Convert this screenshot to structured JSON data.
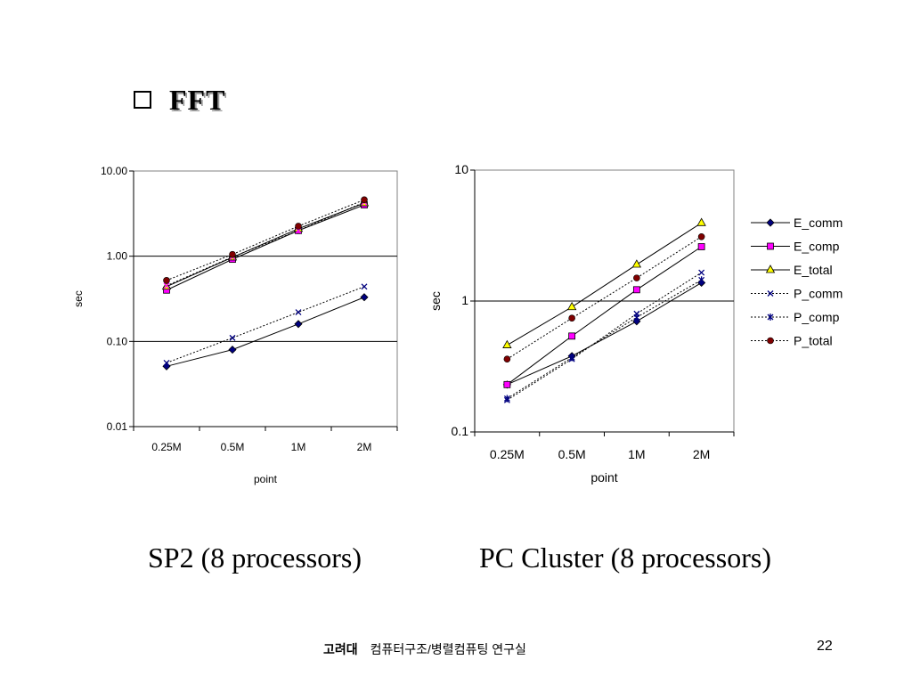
{
  "slide": {
    "title": "FFT",
    "caption_left": "SP2 (8 processors)",
    "caption_right": "PC Cluster (8 processors)",
    "footer_university": "고려대",
    "footer_lab": "컴퓨터구조/병렬컴퓨팅 연구실",
    "page_number": "22"
  },
  "colors": {
    "navy": "#000080",
    "magenta": "#ff00ff",
    "yellow": "#ffff00",
    "dark_red": "#800000",
    "line": "#000000"
  },
  "chart_data": [
    {
      "type": "line",
      "y_scale": "log",
      "xlabel": "point",
      "ylabel": "sec",
      "categories": [
        "0.25M",
        "0.5M",
        "1M",
        "2M"
      ],
      "yticks": [
        "10.00",
        "1.00",
        "0.10",
        "0.01"
      ],
      "ylim": [
        0.01,
        10
      ],
      "grid": "horizontal at 1.00 and 0.10",
      "legend": "none",
      "series": [
        {
          "key": "E_comm",
          "values": [
            0.051,
            0.08,
            0.16,
            0.33
          ],
          "marker": "diamond",
          "fill": "#000080",
          "dash": false
        },
        {
          "key": "E_comp",
          "values": [
            0.4,
            0.92,
            2.0,
            4.0
          ],
          "marker": "square",
          "fill": "#ff00ff",
          "dash": false
        },
        {
          "key": "E_total",
          "values": [
            0.44,
            0.97,
            2.1,
            4.2
          ],
          "marker": "triangle",
          "fill": "#ffff00",
          "dash": false
        },
        {
          "key": "P_comm",
          "values": [
            0.056,
            0.11,
            0.22,
            0.44
          ],
          "marker": "x",
          "fill": "#000080",
          "dash": true
        },
        {
          "key": "P_comp",
          "values": [
            0.45,
            0.98,
            2.0,
            4.3
          ],
          "marker": "x",
          "fill": "#ff00ff",
          "dash": true
        },
        {
          "key": "P_total",
          "values": [
            0.52,
            1.05,
            2.25,
            4.6
          ],
          "marker": "circle",
          "fill": "#800000",
          "dash": true
        }
      ]
    },
    {
      "type": "line",
      "y_scale": "log",
      "xlabel": "point",
      "ylabel": "sec",
      "categories": [
        "0.25M",
        "0.5M",
        "1M",
        "2M"
      ],
      "yticks": [
        "10",
        "1",
        "0.1"
      ],
      "ylim": [
        0.1,
        10
      ],
      "grid": "horizontal at 1",
      "legend": "right",
      "series": [
        {
          "name": "E_comm",
          "values": [
            0.23,
            0.38,
            0.7,
            1.38
          ],
          "marker": "diamond",
          "fill": "#000080",
          "dash": false
        },
        {
          "name": "E_comp",
          "values": [
            0.23,
            0.54,
            1.22,
            2.6
          ],
          "marker": "square",
          "fill": "#ff00ff",
          "dash": false
        },
        {
          "name": "E_total",
          "values": [
            0.46,
            0.9,
            1.9,
            3.95
          ],
          "marker": "triangle",
          "fill": "#ffff00",
          "dash": false
        },
        {
          "name": "P_comm",
          "values": [
            0.175,
            0.36,
            0.8,
            1.65
          ],
          "marker": "x",
          "fill": "#000080",
          "dash": true
        },
        {
          "name": "P_comp",
          "values": [
            0.18,
            0.37,
            0.75,
            1.45
          ],
          "marker": "star",
          "fill": "#000080",
          "dash": true
        },
        {
          "name": "P_total",
          "values": [
            0.36,
            0.74,
            1.5,
            3.1
          ],
          "marker": "circle",
          "fill": "#800000",
          "dash": true
        }
      ]
    }
  ]
}
